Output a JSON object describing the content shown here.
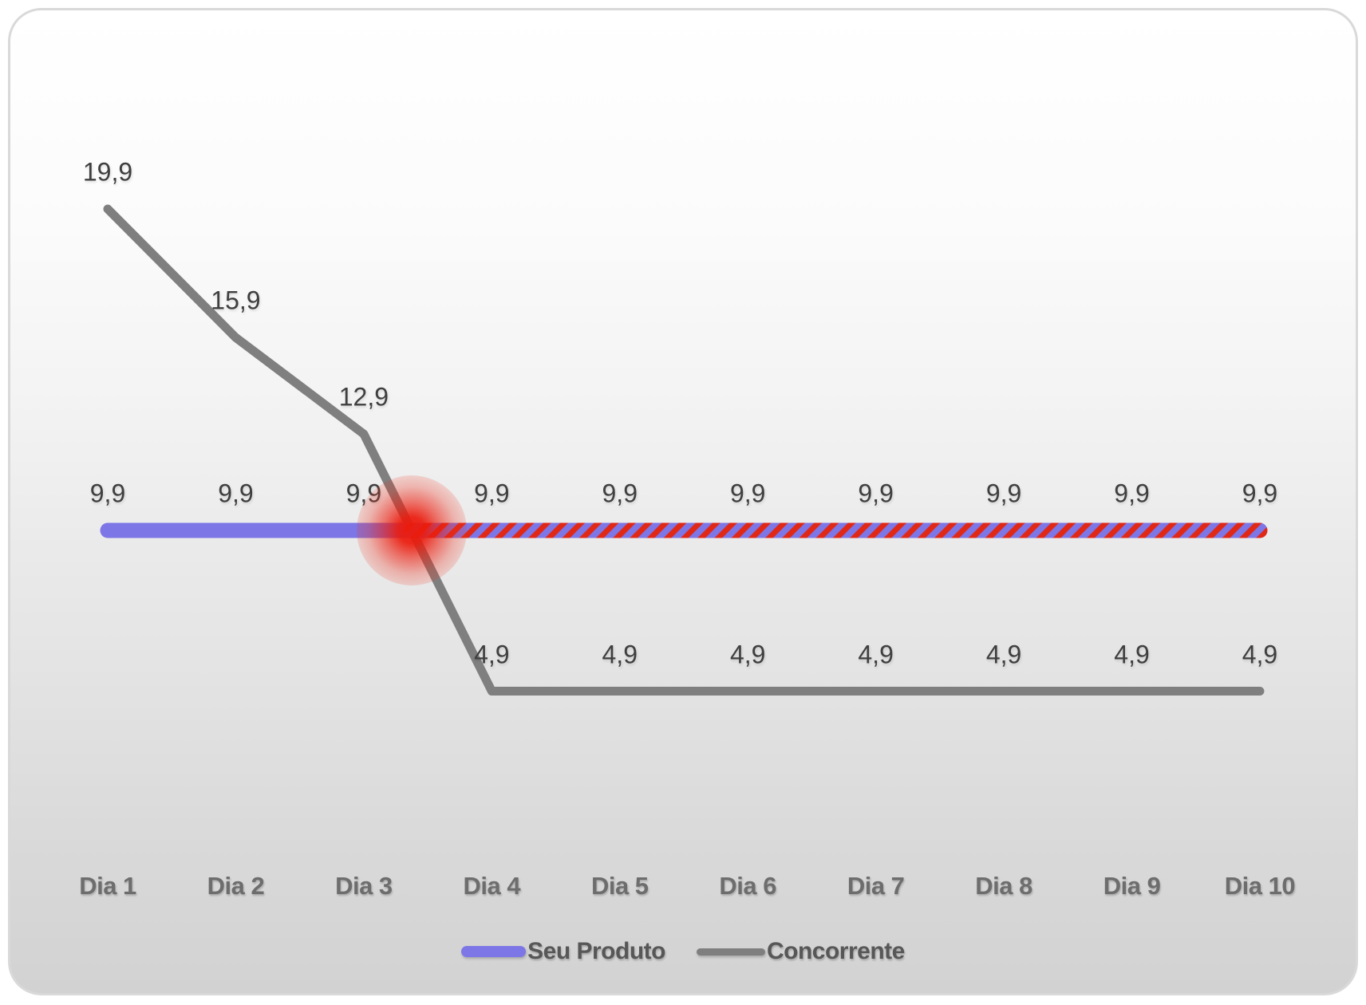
{
  "card": {
    "background_top_color": "#ffffff",
    "background_bottom_color": "#d2d2d2",
    "border_color": "#d9d9d9"
  },
  "chart_data": {
    "type": "line",
    "title": "",
    "xlabel": "",
    "ylabel": "",
    "grid": false,
    "ylim": [
      0,
      22
    ],
    "legend_position": "bottom-center",
    "categories": [
      "Dia 1",
      "Dia 2",
      "Dia 3",
      "Dia 4",
      "Dia 5",
      "Dia 6",
      "Dia 7",
      "Dia 8",
      "Dia 9",
      "Dia 10"
    ],
    "series": [
      {
        "name": "Seu Produto",
        "values": [
          9.9,
          9.9,
          9.9,
          9.9,
          9.9,
          9.9,
          9.9,
          9.9,
          9.9,
          9.9
        ],
        "data_labels": [
          "9,9",
          "9,9",
          "9,9",
          "9,9",
          "9,9",
          "9,9",
          "9,9",
          "9,9",
          "9,9",
          "9,9"
        ],
        "color": "#7d76e6",
        "line_width": 19,
        "overlay": {
          "type": "diagonal-hatch",
          "color": "#e02817",
          "starts_at_crossing": true
        }
      },
      {
        "name": "Concorrente",
        "values": [
          19.9,
          15.9,
          12.9,
          4.9,
          4.9,
          4.9,
          4.9,
          4.9,
          4.9,
          4.9
        ],
        "data_labels": [
          "19,9",
          "15,9",
          "12,9",
          "4,9",
          "4,9",
          "4,9",
          "4,9",
          "4,9",
          "4,9",
          "4,9"
        ],
        "color": "#7f7f7f",
        "line_width": 11
      }
    ],
    "annotations": [
      {
        "type": "glow-marker",
        "color": "#eb1b0d",
        "between_categories": [
          "Dia 3",
          "Dia 4"
        ],
        "at_value": 9.9
      }
    ],
    "value_label_color": "#3f3f3f",
    "axis_label_color": "#6d6d6d"
  },
  "legend": {
    "items": [
      {
        "label": "Seu Produto",
        "swatch_color": "#7d76e6"
      },
      {
        "label": "Concorrente",
        "swatch_color": "#7f7f7f"
      }
    ]
  }
}
